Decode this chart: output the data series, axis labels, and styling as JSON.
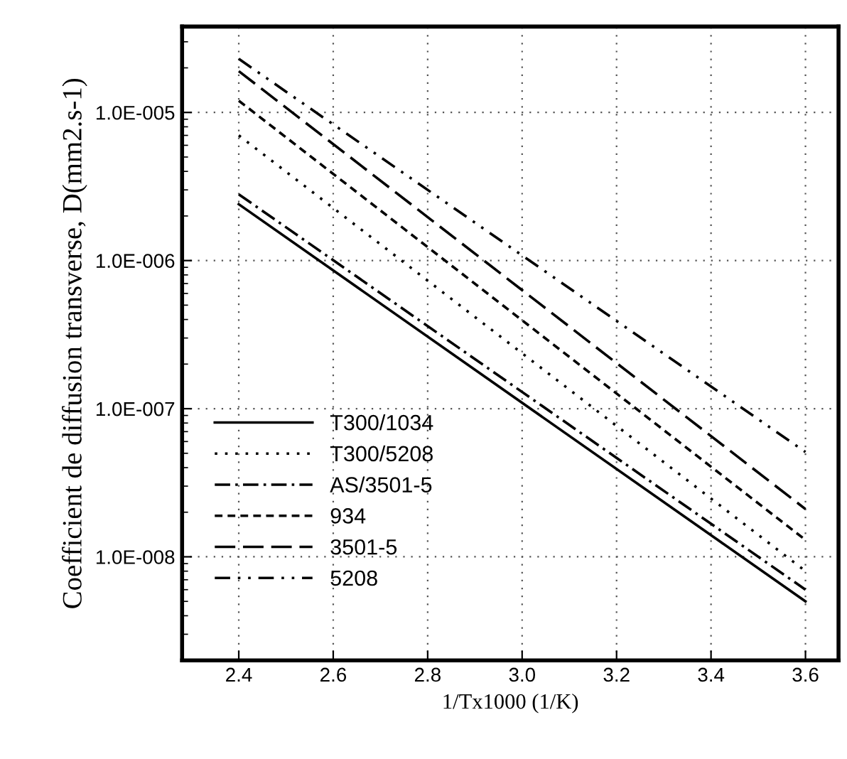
{
  "chart_data": {
    "type": "line",
    "xlabel": "1/Tx1000 (1/K)",
    "ylabel": "Coefficient de diffusion transverse, D(mm2.s-1)",
    "log": "y",
    "grid": true,
    "legend": "bottom left",
    "marker": "none",
    "xlim": [
      2.28,
      3.67
    ],
    "xticks": [
      2.4,
      2.6,
      2.8,
      {
        "value": 3,
        "label": "3.0"
      },
      3.2,
      3.4,
      3.6
    ],
    "ylim": [
      2e-09,
      3.8e-05
    ],
    "yticks": [
      {
        "value": 1e-08,
        "label": "1.0E-008"
      },
      {
        "value": 1e-07,
        "label": "1.0E-007"
      },
      {
        "value": 1e-06,
        "label": "1.0E-006"
      },
      {
        "value": 1e-05,
        "label": "1.0E-005"
      }
    ],
    "x": [
      2.4,
      3.6
    ],
    "series": [
      {
        "name": "T300/1034",
        "color": "#000000",
        "line_style": "solid",
        "values": [
          2.4e-06,
          5e-09
        ]
      },
      {
        "name": "T300/5208",
        "color": "#000000",
        "line_style": "dotted",
        "values": [
          7e-06,
          8e-09
        ]
      },
      {
        "name": "AS/3501-5",
        "color": "#000000",
        "line_style": "dashdot",
        "values": [
          2.8e-06,
          6e-09
        ]
      },
      {
        "name": "934",
        "color": "#000000",
        "line_style": "dashed",
        "values": [
          1.2e-05,
          1.3e-08
        ]
      },
      {
        "name": "3501-5",
        "color": "#000000",
        "line_style": "longdash",
        "values": [
          1.9e-05,
          2.1e-08
        ]
      },
      {
        "name": "5208",
        "color": "#000000",
        "line_style": "dashdotdot",
        "values": [
          2.3e-05,
          5.1e-08
        ]
      }
    ]
  }
}
